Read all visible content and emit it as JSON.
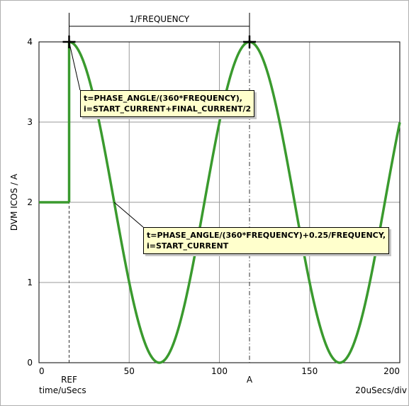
{
  "chart_data": {
    "type": "line",
    "title": "",
    "xlabel": "time/uSecs",
    "ylabel": "DVM ICOS / A",
    "xlim": [
      0,
      200
    ],
    "ylim": [
      0,
      4
    ],
    "x_ticks": [
      0,
      50,
      100,
      150,
      200
    ],
    "y_ticks": [
      0,
      1,
      2,
      3,
      4
    ],
    "grid": true,
    "scale_label": "20uSecs/div",
    "series": [
      {
        "color": "#3a9a2e",
        "segments": [
          {
            "kind": "constant",
            "x": [
              0,
              16.7
            ],
            "y": 2
          },
          {
            "kind": "step",
            "x": 16.7,
            "y": [
              2,
              4
            ]
          },
          {
            "kind": "cosine",
            "x_start": 16.7,
            "x_end": 200,
            "offset": 2,
            "amplitude": 2,
            "period": 100
          }
        ]
      }
    ],
    "markers": [
      {
        "label": "REF",
        "x": 16.7,
        "line_style": "dashed"
      },
      {
        "label": "A",
        "x": 116.7,
        "line_style": "dash-dot"
      }
    ],
    "crosshairs": [
      {
        "x": 16.7,
        "y": 4
      },
      {
        "x": 116.7,
        "y": 4
      }
    ],
    "top_dashed_level": 4,
    "dimension": {
      "label": "1/FREQUENCY",
      "x_from": 16.7,
      "x_to": 116.7
    },
    "annotations": [
      {
        "lines": [
          "t=PHASE_ANGLE/(360*FREQUENCY),",
          "i=START_CURRENT+FINAL_CURRENT/2"
        ],
        "points_to": {
          "x": 16.7,
          "y": 4
        }
      },
      {
        "lines": [
          "t=PHASE_ANGLE/(360*FREQUENCY)+0.25/FREQUENCY,",
          "i=START_CURRENT"
        ],
        "points_to": {
          "x": 41.7,
          "y": 2
        }
      }
    ]
  }
}
